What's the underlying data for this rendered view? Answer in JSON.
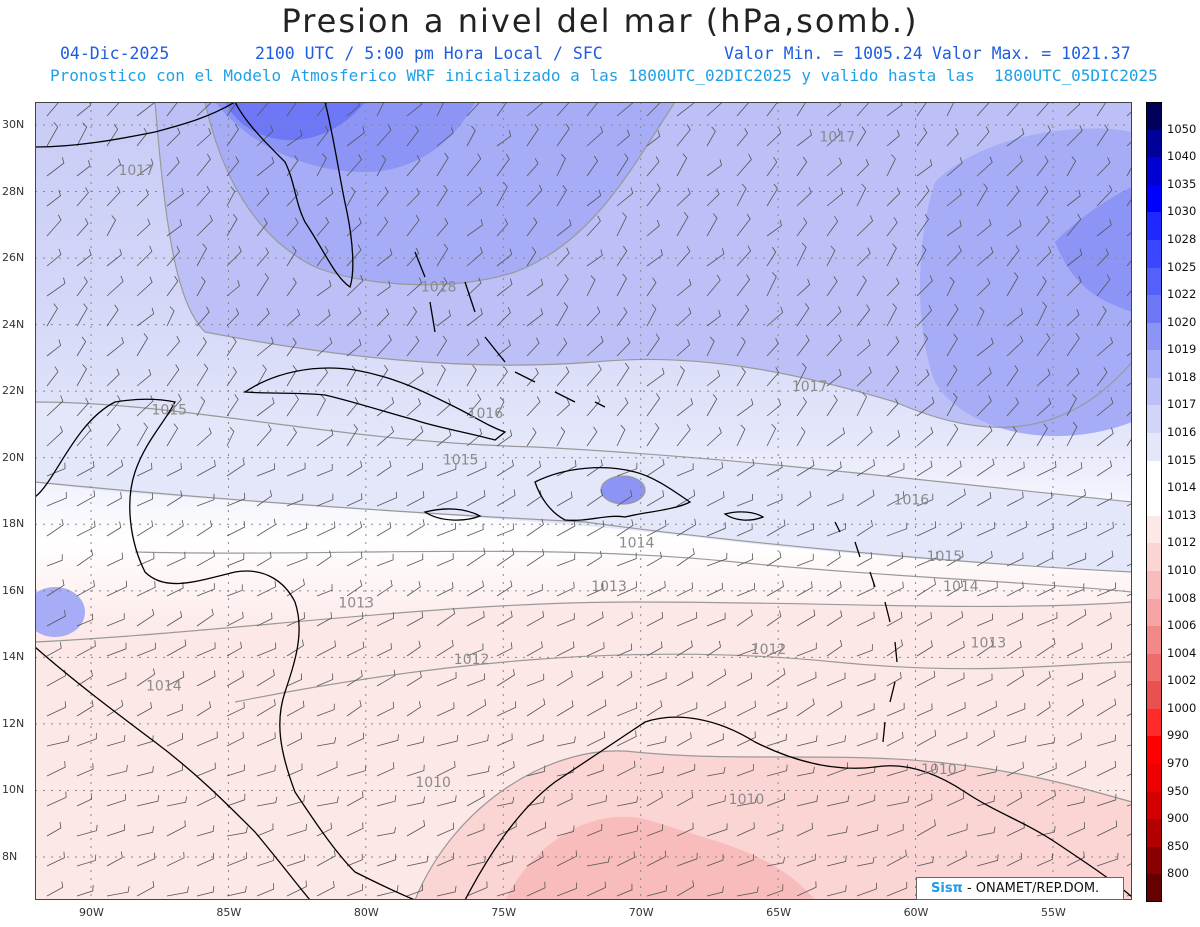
{
  "header": {
    "title": "Presion a nivel del mar (hPa,somb.)",
    "date": "04-Dic-2025",
    "time": "2100 UTC / 5:00 pm Hora Local / SFC",
    "min": "Valor Min. = 1005.24",
    "max": "Valor Max. = 1021.37",
    "model": "Pronostico con el Modelo Atmosferico WRF inicializado a las 1800UTC_02DIC2025 y valido hasta las  1800UTC_05DIC2025"
  },
  "axes": {
    "lat_labels": [
      {
        "lat": 30,
        "text": "30N"
      },
      {
        "lat": 28,
        "text": "28N"
      },
      {
        "lat": 26,
        "text": "26N"
      },
      {
        "lat": 24,
        "text": "24N"
      },
      {
        "lat": 22,
        "text": "22N"
      },
      {
        "lat": 20,
        "text": "20N"
      },
      {
        "lat": 18,
        "text": "18N"
      },
      {
        "lat": 16,
        "text": "16N"
      },
      {
        "lat": 14,
        "text": "14N"
      },
      {
        "lat": 12,
        "text": "12N"
      },
      {
        "lat": 10,
        "text": "10N"
      },
      {
        "lat": 8,
        "text": "8N"
      }
    ],
    "lon_labels": [
      {
        "lon": -90,
        "text": "90W"
      },
      {
        "lon": -85,
        "text": "85W"
      },
      {
        "lon": -80,
        "text": "80W"
      },
      {
        "lon": -75,
        "text": "75W"
      },
      {
        "lon": -70,
        "text": "70W"
      },
      {
        "lon": -65,
        "text": "65W"
      },
      {
        "lon": -60,
        "text": "60W"
      },
      {
        "lon": -55,
        "text": "55W"
      }
    ]
  },
  "contour_labels": [
    {
      "text": "1017",
      "lon": -89.0,
      "lat": 28.5
    },
    {
      "text": "1017",
      "lon": -63.5,
      "lat": 29.5
    },
    {
      "text": "1018",
      "lon": -78.0,
      "lat": 25.0
    },
    {
      "text": "1017",
      "lon": -64.5,
      "lat": 22.0
    },
    {
      "text": "1015",
      "lon": -87.8,
      "lat": 21.3
    },
    {
      "text": "1016",
      "lon": -76.3,
      "lat": 21.2
    },
    {
      "text": "1015",
      "lon": -77.2,
      "lat": 19.8
    },
    {
      "text": "1016",
      "lon": -60.8,
      "lat": 18.6
    },
    {
      "text": "1014",
      "lon": -70.8,
      "lat": 17.3
    },
    {
      "text": "1015",
      "lon": -59.6,
      "lat": 16.9
    },
    {
      "text": "1013",
      "lon": -71.8,
      "lat": 16.0
    },
    {
      "text": "1014",
      "lon": -59.0,
      "lat": 16.0
    },
    {
      "text": "1013",
      "lon": -81.0,
      "lat": 15.5
    },
    {
      "text": "1013",
      "lon": -58.0,
      "lat": 14.3
    },
    {
      "text": "1012",
      "lon": -76.8,
      "lat": 13.8
    },
    {
      "text": "1012",
      "lon": -66.0,
      "lat": 14.1
    },
    {
      "text": "1014",
      "lon": -88.0,
      "lat": 13.0
    },
    {
      "text": "1010",
      "lon": -78.2,
      "lat": 10.1
    },
    {
      "text": "1010",
      "lon": -59.8,
      "lat": 10.5
    },
    {
      "text": "1010",
      "lon": -66.8,
      "lat": 9.6
    }
  ],
  "colorbar": {
    "levels": [
      {
        "label": "1050",
        "color": "#00005a"
      },
      {
        "label": "1040",
        "color": "#00009a"
      },
      {
        "label": "1035",
        "color": "#0000d2"
      },
      {
        "label": "1030",
        "color": "#0000ff"
      },
      {
        "label": "1028",
        "color": "#1e28ff"
      },
      {
        "label": "1025",
        "color": "#3a46ff"
      },
      {
        "label": "1022",
        "color": "#5560fa"
      },
      {
        "label": "1020",
        "color": "#6e78f6"
      },
      {
        "label": "1019",
        "color": "#8c94f6"
      },
      {
        "label": "1018",
        "color": "#a6acf6"
      },
      {
        "label": "1017",
        "color": "#bcc0f6"
      },
      {
        "label": "1016",
        "color": "#d2d4f8"
      },
      {
        "label": "1015",
        "color": "#e4e6fa"
      },
      {
        "label": "1014",
        "color": "#ffffff"
      },
      {
        "label": "1013",
        "color": "#ffffff"
      },
      {
        "label": "1012",
        "color": "#fde8e8"
      },
      {
        "label": "1010",
        "color": "#fbd4d4"
      },
      {
        "label": "1008",
        "color": "#f8bcbc"
      },
      {
        "label": "1006",
        "color": "#f6a4a4"
      },
      {
        "label": "1004",
        "color": "#f28888"
      },
      {
        "label": "1002",
        "color": "#ee6c6c"
      },
      {
        "label": "1000",
        "color": "#ea5050"
      },
      {
        "label": "990",
        "color": "#ff2a2a"
      },
      {
        "label": "970",
        "color": "#ff0000"
      },
      {
        "label": "950",
        "color": "#ee0000"
      },
      {
        "label": "900",
        "color": "#d40000"
      },
      {
        "label": "850",
        "color": "#b00000"
      },
      {
        "label": "800",
        "color": "#8a0000"
      },
      {
        "label": "",
        "color": "#640000"
      }
    ]
  },
  "credit": {
    "logo": "Sisπ",
    "text": "- ONAMET/REP.DOM."
  }
}
